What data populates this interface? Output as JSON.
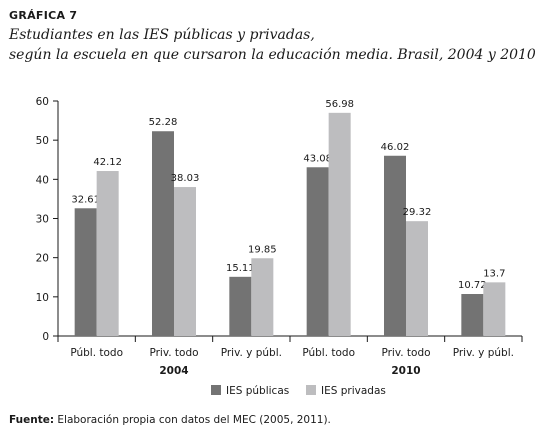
{
  "header": {
    "chart_number": "GRÁFICA 7",
    "title_line1": "Estudiantes en las IES públicas y privadas,",
    "title_line2": "según la escuela en que cursaron la educación media. Brasil, 2004 y 2010"
  },
  "source": {
    "prefix": "Fuente:",
    "text": "Elaboración propia con datos del MEC (2005, 2011)."
  },
  "colors": {
    "publicas": "#737373",
    "privadas": "#bdbdbf",
    "axis": "#1a1a1a"
  },
  "chart_data": {
    "type": "bar",
    "ylim": [
      0,
      60
    ],
    "yticks": [
      0,
      10,
      20,
      30,
      40,
      50,
      60
    ],
    "categories": [
      "Públ. todo",
      "Priv. todo",
      "Priv. y públ.",
      "Públ. todo",
      "Priv. todo",
      "Priv. y públ."
    ],
    "groups": [
      {
        "label": "2004",
        "categories": [
          0,
          1,
          2
        ]
      },
      {
        "label": "2010",
        "categories": [
          3,
          4,
          5
        ]
      }
    ],
    "series": [
      {
        "name": "IES públicas",
        "values": [
          32.61,
          52.28,
          15.11,
          43.08,
          46.02,
          10.72
        ],
        "labels": [
          "32.61",
          "52.28",
          "15.11",
          "43.08",
          "46.02",
          "10.72"
        ]
      },
      {
        "name": "IES privadas",
        "values": [
          42.12,
          38.03,
          19.85,
          56.98,
          29.32,
          13.7
        ],
        "labels": [
          "42.12",
          "38.03",
          "19.85",
          "56.98",
          "29.32",
          "13.7"
        ]
      }
    ],
    "legend_position": "bottom",
    "grid": false
  }
}
